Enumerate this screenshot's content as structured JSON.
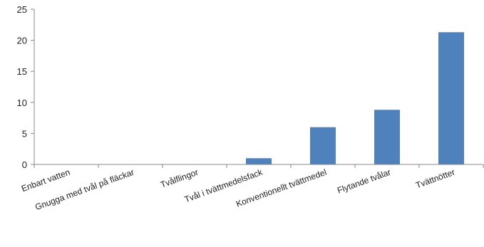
{
  "chart_data": {
    "type": "bar",
    "title": "",
    "xlabel": "",
    "ylabel": "",
    "categories": [
      "Enbart vatten",
      "Gnugga med tvål på fläckar",
      "Tvålflingor",
      "Tvål i tvättmedelsfack",
      "Konventionellt tvättmedel",
      "Flytande tvålar",
      "Tvättnötter"
    ],
    "values": [
      0,
      0,
      0,
      1.0,
      6.0,
      8.8,
      21.3
    ],
    "ylim": [
      0,
      25
    ],
    "yticks": [
      0,
      5,
      10,
      15,
      20,
      25
    ],
    "grid": false,
    "legend": "none",
    "bar_color": "#4f81bd"
  }
}
